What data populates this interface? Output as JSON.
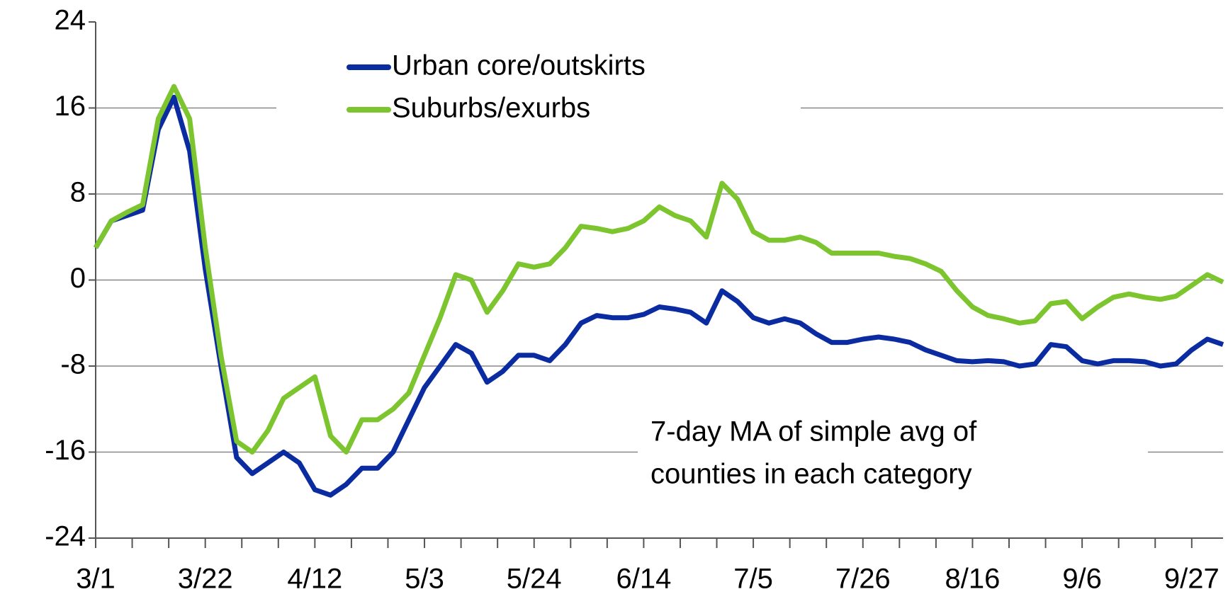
{
  "chart_data": {
    "type": "line",
    "annotation": [
      "7-day MA of simple avg of",
      "counties in each category"
    ],
    "x": [
      0,
      3,
      6,
      9,
      12,
      15,
      18,
      21,
      24,
      27,
      30,
      33,
      36,
      39,
      42,
      45,
      48,
      51,
      54,
      57,
      60,
      63,
      66,
      69,
      72,
      75,
      78,
      81,
      84,
      87,
      90,
      93,
      96,
      99,
      102,
      105,
      108,
      111,
      114,
      117,
      120,
      123,
      126,
      129,
      132,
      135,
      138,
      141,
      144,
      147,
      150,
      153,
      156,
      159,
      162,
      165,
      168,
      171,
      174,
      177,
      180,
      183,
      186,
      189,
      192,
      195,
      198,
      201,
      204,
      207,
      210,
      213,
      216
    ],
    "series": [
      {
        "name": "Urban core/outskirts",
        "color": "#0b2ca0",
        "values": [
          3,
          5.5,
          6,
          6.5,
          14,
          17,
          12,
          1,
          -8,
          -16.5,
          -18,
          -17,
          -16,
          -17,
          -19.5,
          -20,
          -19,
          -17.5,
          -17.5,
          -16,
          -13,
          -10,
          -8,
          -6,
          -6.8,
          -9.5,
          -8.5,
          -7,
          -7,
          -7.5,
          -6,
          -4,
          -3.3,
          -3.5,
          -3.5,
          -3.2,
          -2.5,
          -2.7,
          -3,
          -4,
          -1,
          -2,
          -3.5,
          -4,
          -3.6,
          -4,
          -5,
          -5.8,
          -5.8,
          -5.5,
          -5.3,
          -5.5,
          -5.8,
          -6.5,
          -7,
          -7.5,
          -7.6,
          -7.5,
          -7.6,
          -8,
          -7.8,
          -6,
          -6.2,
          -7.5,
          -7.8,
          -7.5,
          -7.5,
          -7.6,
          -8,
          -7.8,
          -6.5,
          -5.5,
          -6
        ]
      },
      {
        "name": "Suburbs/exurbs",
        "color": "#7dc52e",
        "values": [
          3,
          5.5,
          6.3,
          7,
          15,
          18,
          15,
          3,
          -7,
          -15,
          -16,
          -14,
          -11,
          -10,
          -9,
          -14.5,
          -16,
          -13,
          -13,
          -12,
          -10.5,
          -7,
          -3.5,
          0.5,
          0,
          -3,
          -1,
          1.5,
          1.2,
          1.5,
          3,
          5,
          4.8,
          4.5,
          4.8,
          5.5,
          6.8,
          6,
          5.5,
          4,
          9,
          7.5,
          4.5,
          3.7,
          3.7,
          4,
          3.5,
          2.5,
          2.5,
          2.5,
          2.5,
          2.2,
          2,
          1.5,
          0.8,
          -1,
          -2.5,
          -3.3,
          -3.6,
          -4,
          -3.8,
          -2.2,
          -2,
          -3.6,
          -2.5,
          -1.6,
          -1.3,
          -1.6,
          -1.8,
          -1.5,
          -0.5,
          0.5,
          -0.2
        ]
      }
    ],
    "xlim": [
      0,
      216
    ],
    "xticks": [
      {
        "value": 0,
        "label": "3/1"
      },
      {
        "value": 21,
        "label": "3/22"
      },
      {
        "value": 42,
        "label": "4/12"
      },
      {
        "value": 63,
        "label": "5/3"
      },
      {
        "value": 84,
        "label": "5/24"
      },
      {
        "value": 105,
        "label": "6/14"
      },
      {
        "value": 126,
        "label": "7/5"
      },
      {
        "value": 147,
        "label": "7/26"
      },
      {
        "value": 168,
        "label": "8/16"
      },
      {
        "value": 189,
        "label": "9/6"
      },
      {
        "value": 210,
        "label": "9/27"
      }
    ],
    "xminorticks": [
      7,
      14,
      28,
      35,
      49,
      56,
      70,
      77,
      91,
      98,
      112,
      119,
      133,
      140,
      154,
      161,
      175,
      182,
      196,
      203
    ],
    "ylim": [
      -24,
      24
    ],
    "yticks": [
      -24,
      -16,
      -8,
      0,
      8,
      16,
      24
    ],
    "grid": true
  }
}
